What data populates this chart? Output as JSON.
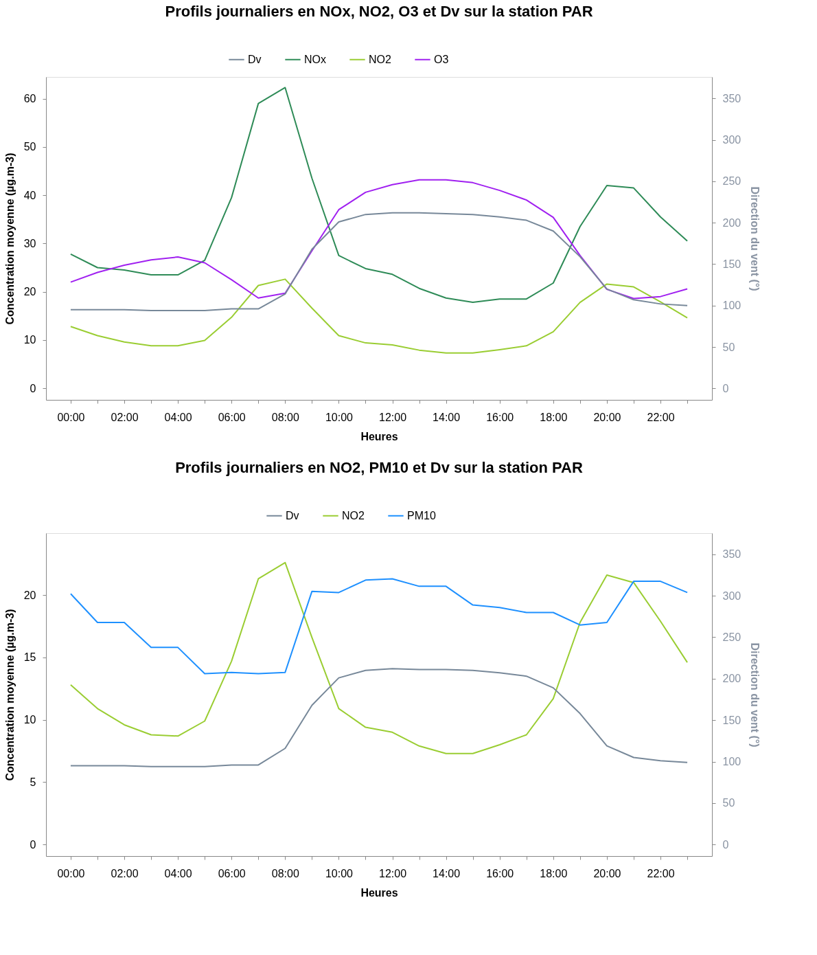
{
  "chart_data": [
    {
      "type": "line",
      "title": "Profils journaliers en NOx, NO2, O3 et Dv sur la station PAR",
      "xlabel": "Heures",
      "ylabel": "Concentration moyenne (µg.m-3)",
      "y2label": "Direction du vent (°)",
      "legend": "top",
      "grid": false,
      "x": [
        0,
        1,
        2,
        3,
        4,
        5,
        6,
        7,
        8,
        9,
        10,
        11,
        12,
        13,
        14,
        15,
        16,
        17,
        18,
        19,
        20,
        21,
        22,
        23
      ],
      "xlim": [
        -0.92,
        23.92
      ],
      "xticks": [
        {
          "value": 0,
          "label": "00:00"
        },
        {
          "value": 1,
          "label": null
        },
        {
          "value": 2,
          "label": "02:00"
        },
        {
          "value": 3,
          "label": null
        },
        {
          "value": 4,
          "label": "04:00"
        },
        {
          "value": 5,
          "label": null
        },
        {
          "value": 6,
          "label": "06:00"
        },
        {
          "value": 7,
          "label": null
        },
        {
          "value": 8,
          "label": "08:00"
        },
        {
          "value": 9,
          "label": null
        },
        {
          "value": 10,
          "label": "10:00"
        },
        {
          "value": 11,
          "label": null
        },
        {
          "value": 12,
          "label": "12:00"
        },
        {
          "value": 13,
          "label": null
        },
        {
          "value": 14,
          "label": "14:00"
        },
        {
          "value": 15,
          "label": null
        },
        {
          "value": 16,
          "label": "16:00"
        },
        {
          "value": 17,
          "label": null
        },
        {
          "value": 18,
          "label": "18:00"
        },
        {
          "value": 19,
          "label": null
        },
        {
          "value": 20,
          "label": "20:00"
        },
        {
          "value": 21,
          "label": null
        },
        {
          "value": 22,
          "label": "22:00"
        },
        {
          "value": 23,
          "label": null
        }
      ],
      "ylim": [
        -2.4,
        64.5
      ],
      "yticks": [
        0,
        10,
        20,
        30,
        40,
        50,
        60
      ],
      "y2lim": [
        -13.8,
        376
      ],
      "y2ticks": [
        0,
        50,
        100,
        150,
        200,
        250,
        300,
        350
      ],
      "series": [
        {
          "name": "Dv",
          "color": "#778899",
          "axis": "y2",
          "values": [
            95,
            95,
            95,
            94,
            94,
            94,
            96,
            96,
            114,
            168,
            201,
            210,
            212,
            212,
            211,
            210,
            207,
            203,
            190,
            159,
            120,
            107,
            102,
            100
          ]
        },
        {
          "name": "NOx",
          "color": "#2e8b57",
          "values": [
            27.8,
            25,
            24.5,
            23.5,
            23.5,
            26.5,
            39.5,
            59,
            62.3,
            43.5,
            27.5,
            24.8,
            23.6,
            20.7,
            18.7,
            17.8,
            18.5,
            18.5,
            21.8,
            33.5,
            42,
            41.5,
            35.5,
            30.5
          ]
        },
        {
          "name": "NO2",
          "color": "#9acd32",
          "values": [
            12.8,
            10.9,
            9.6,
            8.8,
            8.8,
            9.9,
            14.7,
            21.3,
            22.6,
            16.6,
            10.9,
            9.4,
            9.0,
            7.9,
            7.3,
            7.3,
            8.0,
            8.8,
            11.7,
            17.8,
            21.6,
            21.0,
            17.9,
            14.6
          ]
        },
        {
          "name": "O3",
          "color": "#a020f0",
          "values": [
            22,
            24,
            25.5,
            26.6,
            27.2,
            26,
            22.5,
            18.7,
            19.7,
            28.5,
            37,
            40.6,
            42.2,
            43.2,
            43.2,
            42.6,
            41,
            39,
            35.4,
            27.5,
            20.5,
            18.6,
            19,
            20.6
          ]
        }
      ]
    },
    {
      "type": "line",
      "title": "Profils journaliers en NO2, PM10 et Dv sur la station PAR",
      "xlabel": "Heures",
      "ylabel": "Concentration moyenne (µg.m-3)",
      "y2label": "Direction du vent (°)",
      "legend": "top",
      "grid": false,
      "x": [
        0,
        1,
        2,
        3,
        4,
        5,
        6,
        7,
        8,
        9,
        10,
        11,
        12,
        13,
        14,
        15,
        16,
        17,
        18,
        19,
        20,
        21,
        22,
        23
      ],
      "xlim": [
        -0.92,
        23.92
      ],
      "xticks": [
        {
          "value": 0,
          "label": "00:00"
        },
        {
          "value": 1,
          "label": null
        },
        {
          "value": 2,
          "label": "02:00"
        },
        {
          "value": 3,
          "label": null
        },
        {
          "value": 4,
          "label": "04:00"
        },
        {
          "value": 5,
          "label": null
        },
        {
          "value": 6,
          "label": "06:00"
        },
        {
          "value": 7,
          "label": null
        },
        {
          "value": 8,
          "label": "08:00"
        },
        {
          "value": 9,
          "label": null
        },
        {
          "value": 10,
          "label": "10:00"
        },
        {
          "value": 11,
          "label": null
        },
        {
          "value": 12,
          "label": "12:00"
        },
        {
          "value": 13,
          "label": null
        },
        {
          "value": 14,
          "label": "14:00"
        },
        {
          "value": 15,
          "label": null
        },
        {
          "value": 16,
          "label": "16:00"
        },
        {
          "value": 17,
          "label": null
        },
        {
          "value": 18,
          "label": "18:00"
        },
        {
          "value": 19,
          "label": null
        },
        {
          "value": 20,
          "label": "20:00"
        },
        {
          "value": 21,
          "label": null
        },
        {
          "value": 22,
          "label": "22:00"
        },
        {
          "value": 23,
          "label": null
        }
      ],
      "ylim": [
        -0.92,
        24.96
      ],
      "yticks": [
        0,
        5,
        10,
        15,
        20
      ],
      "y2lim": [
        -13.8,
        375.4
      ],
      "y2ticks": [
        0,
        50,
        100,
        150,
        200,
        250,
        300,
        350
      ],
      "series": [
        {
          "name": "Dv",
          "color": "#778899",
          "axis": "y2",
          "values": [
            95,
            95,
            95,
            94,
            94,
            94,
            96,
            96,
            116,
            168,
            201,
            210,
            212,
            211,
            211,
            210,
            207,
            203,
            189,
            158,
            119,
            105,
            101,
            99
          ]
        },
        {
          "name": "NO2",
          "color": "#9acd32",
          "values": [
            12.8,
            10.9,
            9.6,
            8.8,
            8.7,
            9.9,
            14.7,
            21.3,
            22.6,
            16.6,
            10.9,
            9.4,
            9.0,
            7.9,
            7.3,
            7.3,
            8.0,
            8.8,
            11.7,
            17.8,
            21.6,
            21.0,
            17.9,
            14.6
          ]
        },
        {
          "name": "PM10",
          "color": "#1e90ff",
          "values": [
            20.1,
            17.8,
            17.8,
            15.8,
            15.8,
            13.7,
            13.8,
            13.7,
            13.8,
            20.3,
            20.2,
            21.2,
            21.3,
            20.7,
            20.7,
            19.2,
            19.0,
            18.6,
            18.6,
            17.6,
            17.8,
            21.1,
            21.1,
            20.2
          ]
        }
      ]
    }
  ]
}
